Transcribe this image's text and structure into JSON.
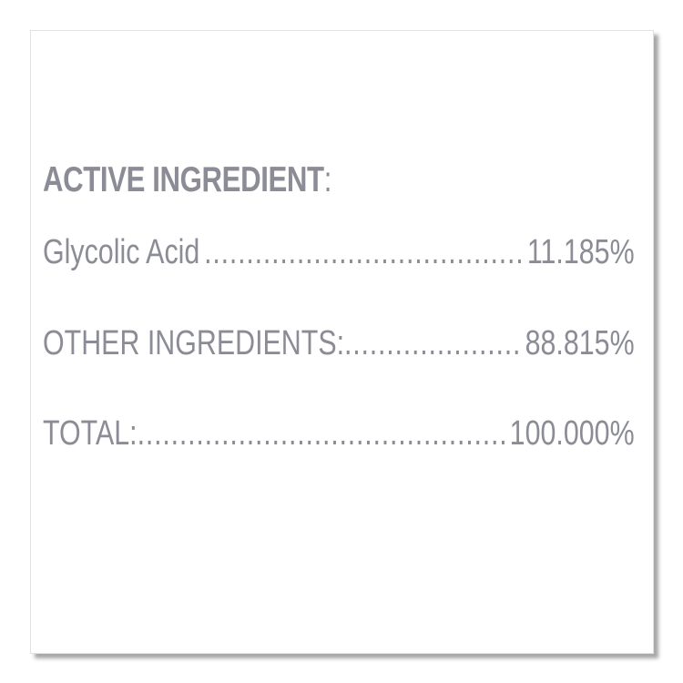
{
  "label": {
    "heading": "ACTIVE INGREDIENT",
    "heading_colon": ":",
    "rows": [
      {
        "name": "Glycolic Acid",
        "value": "11.185%"
      },
      {
        "name": "OTHER INGREDIENTS:",
        "value": "88.815%"
      },
      {
        "name": "TOTAL:",
        "value": "100.000%"
      }
    ],
    "text_color": "#8b8c95"
  }
}
